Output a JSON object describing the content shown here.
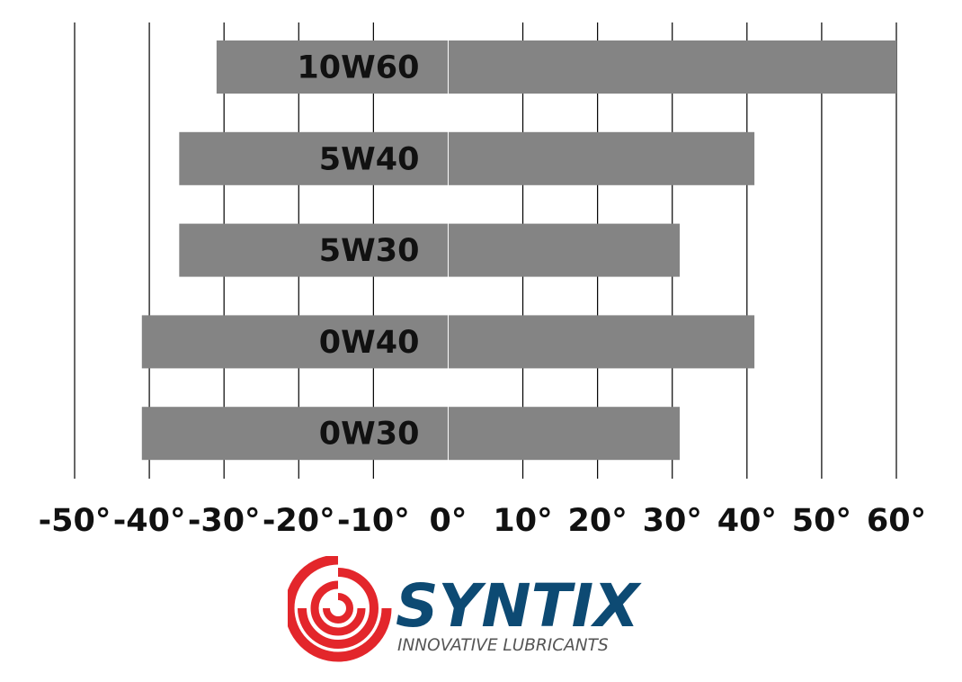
{
  "chart_data": {
    "type": "bar",
    "orientation": "horizontal",
    "title": "",
    "xlabel": "",
    "ylabel": "",
    "categories": [
      "10W60",
      "5W40",
      "5W30",
      "0W40",
      "0W30"
    ],
    "ranges": [
      {
        "label": "10W60",
        "min": -31,
        "max": 60
      },
      {
        "label": "5W40",
        "min": -36,
        "max": 41
      },
      {
        "label": "5W30",
        "min": -36,
        "max": 31
      },
      {
        "label": "0W40",
        "min": -41,
        "max": 41
      },
      {
        "label": "0W30",
        "min": -41,
        "max": 31
      }
    ],
    "xlim": [
      -50,
      60
    ],
    "xticks": [
      -50,
      -40,
      -30,
      -20,
      -10,
      0,
      10,
      20,
      30,
      40,
      50,
      60
    ],
    "tick_labels": [
      "-50°",
      "-40°",
      "-30°",
      "-20°",
      "-10°",
      "0°",
      "10°",
      "20°",
      "30°",
      "40°",
      "50°",
      "60°"
    ],
    "grid": "vertical",
    "bar_color": "#848484",
    "gridline_color": "#000000",
    "zero_line_color": "#ffffff"
  },
  "logo": {
    "name": "SYNTIX",
    "tagline": "INNOVATIVE LUBRICANTS",
    "mark_color": "#e3262b",
    "name_color": "#0d4a73",
    "tagline_color": "#555555"
  }
}
